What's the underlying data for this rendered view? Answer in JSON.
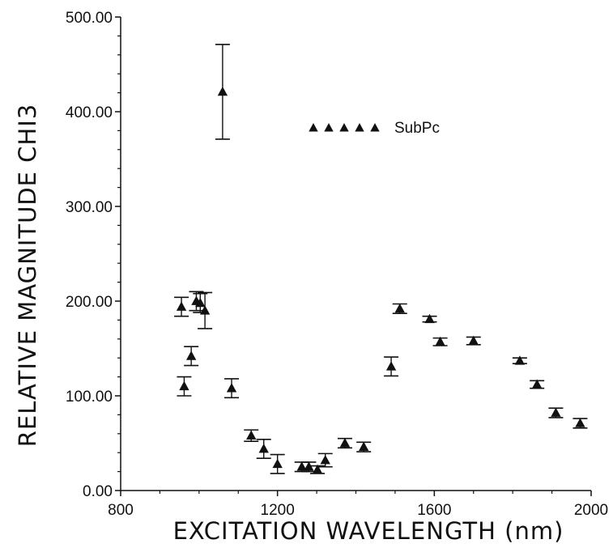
{
  "chart_data": {
    "type": "scatter",
    "title": "",
    "xlabel": "EXCITATION  WAVELENGTH  (nm)",
    "ylabel": "RELATIVE  MAGNITUDE  CHI3",
    "xlim": [
      800,
      2000
    ],
    "ylim": [
      0,
      500
    ],
    "x_ticks": [
      800,
      1200,
      1600,
      2000
    ],
    "x_tick_labels": [
      "800",
      "1200",
      "1600",
      "2000"
    ],
    "y_ticks": [
      0,
      100,
      200,
      300,
      400,
      500
    ],
    "y_tick_labels": [
      "0.00",
      "100.00",
      "200.00",
      "300.00",
      "400.00",
      "500.00"
    ],
    "legend_position": "top-right",
    "grid": false,
    "series": [
      {
        "name": "SubPc",
        "marker": "triangle",
        "color": "#111111",
        "points": [
          {
            "x": 955,
            "y": 194,
            "err": 10
          },
          {
            "x": 962,
            "y": 110,
            "err": 10
          },
          {
            "x": 980,
            "y": 142,
            "err": 10
          },
          {
            "x": 993,
            "y": 200,
            "err": 10
          },
          {
            "x": 1003,
            "y": 198,
            "err": 10
          },
          {
            "x": 1015,
            "y": 190,
            "err": 19
          },
          {
            "x": 1060,
            "y": 421,
            "err": 50
          },
          {
            "x": 1083,
            "y": 108,
            "err": 10
          },
          {
            "x": 1133,
            "y": 58,
            "err": 6
          },
          {
            "x": 1165,
            "y": 44,
            "err": 10
          },
          {
            "x": 1200,
            "y": 28,
            "err": 10
          },
          {
            "x": 1262,
            "y": 25,
            "err": 5
          },
          {
            "x": 1280,
            "y": 25,
            "err": 5
          },
          {
            "x": 1302,
            "y": 22,
            "err": 4
          },
          {
            "x": 1322,
            "y": 32,
            "err": 7
          },
          {
            "x": 1372,
            "y": 50,
            "err": 5
          },
          {
            "x": 1420,
            "y": 46,
            "err": 5
          },
          {
            "x": 1490,
            "y": 131,
            "err": 10
          },
          {
            "x": 1512,
            "y": 192,
            "err": 5
          },
          {
            "x": 1588,
            "y": 181,
            "err": 3
          },
          {
            "x": 1615,
            "y": 157,
            "err": 4
          },
          {
            "x": 1700,
            "y": 158,
            "err": 4
          },
          {
            "x": 1818,
            "y": 137,
            "err": 3
          },
          {
            "x": 1862,
            "y": 112,
            "err": 4
          },
          {
            "x": 1910,
            "y": 82,
            "err": 5
          },
          {
            "x": 1972,
            "y": 71,
            "err": 5
          }
        ]
      }
    ]
  }
}
